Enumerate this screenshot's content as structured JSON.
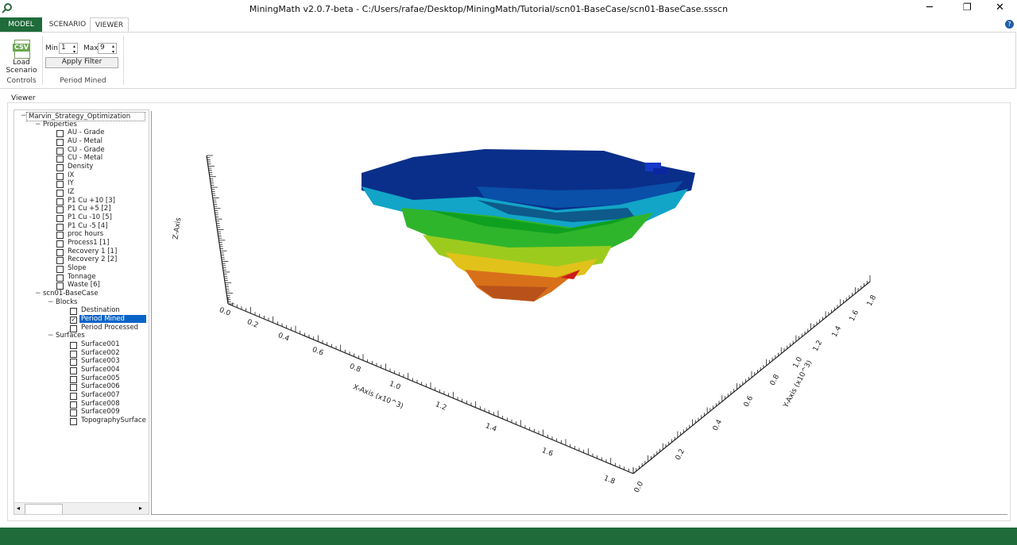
{
  "window": {
    "title": "MiningMath v2.0.7-beta - C:/Users/rafae/Desktop/MiningMath/Tutorial/scn01-BaseCase/scn01-BaseCase.ssscn"
  },
  "ribbon": {
    "tabs": [
      "MODEL",
      "SCENARIO",
      "VIEWER"
    ],
    "active_tab": 2,
    "icon_text": "CSV",
    "load_button": [
      "Load",
      "Scenario"
    ],
    "controls_group": "Controls",
    "min_label": "Min",
    "min_value": 1,
    "max_label": "Max",
    "max_value": 9,
    "apply_button": "Apply Filter",
    "period_group": "Period Mined"
  },
  "viewer": {
    "label": "Viewer",
    "tree": {
      "label": "Marvin_Strategy_Optimization",
      "children": [
        {
          "label": "Properties",
          "items": [
            "AU - Grade",
            "AU - Metal",
            "CU - Grade",
            "CU - Metal",
            "Density",
            "IX",
            "IY",
            "IZ",
            "P1 Cu +10 [3]",
            "P1 Cu +5 [2]",
            "P1 Cu -10 [5]",
            "P1 Cu -5 [4]",
            "proc hours",
            "Process1 [1]",
            "Recovery 1 [1]",
            "Recovery 2 [2]",
            "Slope",
            "Tonnage",
            "Waste [6]"
          ]
        },
        {
          "label": "scn01-BaseCase",
          "children": [
            {
              "label": "Blocks",
              "items": [
                "Destination",
                "Period Mined",
                "Period Processed"
              ],
              "checked_index": 1
            },
            {
              "label": "Surfaces",
              "items": [
                "Surface001",
                "Surface002",
                "Surface003",
                "Surface004",
                "Surface005",
                "Surface006",
                "Surface007",
                "Surface008",
                "Surface009",
                "TopographySurface"
              ]
            }
          ]
        }
      ]
    },
    "z_axis": {
      "label": "Z-Axis"
    },
    "x_axis": {
      "label": "X-Axis (x10^3)",
      "ticks": [
        "0.0",
        "0.2",
        "0.4",
        "0.6",
        "0.8",
        "1.0",
        "1.2",
        "1.4",
        "1.6",
        "1.8"
      ]
    },
    "y_axis": {
      "label": "Y-Axis (x10^3)",
      "ticks": [
        "0.0",
        "0.2",
        "0.4",
        "0.6",
        "0.8",
        "1.0",
        "1.2",
        "1.4",
        "1.6",
        "1.8"
      ]
    }
  }
}
